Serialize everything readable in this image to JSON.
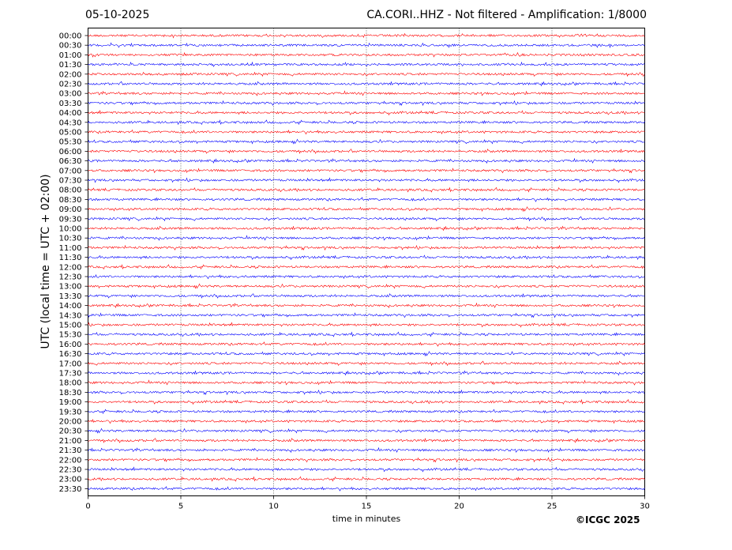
{
  "header": {
    "date": "05-10-2025",
    "title": "CA.CORI..HHZ - Not filtered - Amplification: 1/8000"
  },
  "footer": {
    "copyright": "©ICGC 2025"
  },
  "chart_data": {
    "type": "line",
    "xlabel": "time in minutes",
    "ylabel": "UTC (local time = UTC + 02:00)",
    "xlim": [
      0,
      30
    ],
    "xticks": [
      0,
      5,
      10,
      15,
      20,
      25,
      30
    ],
    "grid": "vertical dotted lines at x ticks",
    "row_labels": [
      "00:00",
      "00:30",
      "01:00",
      "01:30",
      "02:00",
      "02:30",
      "03:00",
      "03:30",
      "04:00",
      "04:30",
      "05:00",
      "05:30",
      "06:00",
      "06:30",
      "07:00",
      "07:30",
      "08:00",
      "08:30",
      "09:00",
      "09:30",
      "10:00",
      "10:30",
      "11:00",
      "11:30",
      "12:00",
      "12:30",
      "13:00",
      "13:30",
      "14:00",
      "14:30",
      "15:00",
      "15:30",
      "16:00",
      "16:30",
      "17:00",
      "17:30",
      "18:00",
      "18:30",
      "19:00",
      "19:30",
      "20:00",
      "20:30",
      "21:00",
      "21:30",
      "22:00",
      "22:30",
      "23:00",
      "23:30"
    ],
    "trace_colors": [
      "#ff0000",
      "#0000ff"
    ],
    "color_pattern": "red on full hours, blue on half hours"
  }
}
